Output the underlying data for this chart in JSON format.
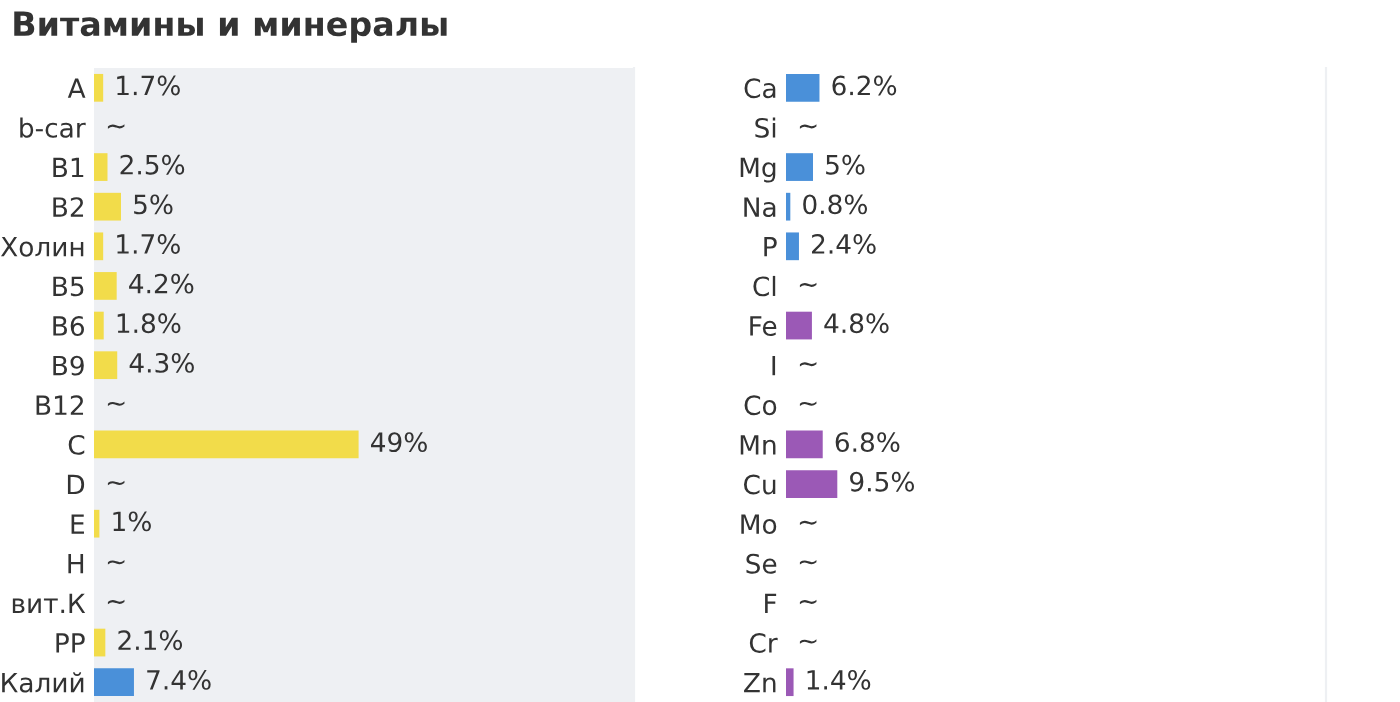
{
  "chart_data": [
    {
      "type": "bar",
      "orientation": "horizontal",
      "title": "Витамины и минералы",
      "categories": [
        "A",
        "b-car",
        "B1",
        "B2",
        "Холин",
        "B5",
        "B6",
        "B9",
        "B12",
        "C",
        "D",
        "E",
        "H",
        "вит.К",
        "PP",
        "Калий"
      ],
      "values": [
        1.7,
        null,
        2.5,
        5,
        1.7,
        4.2,
        1.8,
        4.3,
        null,
        49,
        null,
        1,
        null,
        null,
        2.1,
        7.4
      ],
      "value_labels": [
        "1.7%",
        "~",
        "2.5%",
        "5%",
        "1.7%",
        "4.2%",
        "1.8%",
        "4.3%",
        "~",
        "49%",
        "~",
        "1%",
        "~",
        "~",
        "2.1%",
        "7.4%"
      ],
      "colors": [
        "#f2dc4a",
        "#f2dc4a",
        "#f2dc4a",
        "#f2dc4a",
        "#f2dc4a",
        "#f2dc4a",
        "#f2dc4a",
        "#f2dc4a",
        "#f2dc4a",
        "#f2dc4a",
        "#f2dc4a",
        "#f2dc4a",
        "#f2dc4a",
        "#f2dc4a",
        "#f2dc4a",
        "#4a90d9"
      ],
      "xlim": [
        0,
        100
      ],
      "tick_labels": "y",
      "bands": [
        {
          "axis": "x",
          "from": 0,
          "to": 100,
          "color": "#eef0f3"
        }
      ]
    },
    {
      "type": "bar",
      "orientation": "horizontal",
      "categories": [
        "Ca",
        "Si",
        "Mg",
        "Na",
        "P",
        "Cl",
        "Fe",
        "I",
        "Co",
        "Mn",
        "Cu",
        "Mo",
        "Se",
        "F",
        "Cr",
        "Zn"
      ],
      "values": [
        6.2,
        null,
        5,
        0.8,
        2.4,
        null,
        4.8,
        null,
        null,
        6.8,
        9.5,
        null,
        null,
        null,
        null,
        1.4
      ],
      "value_labels": [
        "6.2%",
        "~",
        "5%",
        "0.8%",
        "2.4%",
        "~",
        "4.8%",
        "~",
        "~",
        "6.8%",
        "9.5%",
        "~",
        "~",
        "~",
        "~",
        "1.4%"
      ],
      "colors": [
        "#4a90d9",
        "#4a90d9",
        "#4a90d9",
        "#4a90d9",
        "#4a90d9",
        "#4a90d9",
        "#9b59b6",
        "#9b59b6",
        "#9b59b6",
        "#9b59b6",
        "#9b59b6",
        "#9b59b6",
        "#9b59b6",
        "#9b59b6",
        "#9b59b6",
        "#9b59b6"
      ],
      "xlim": [
        0,
        100
      ],
      "tick_labels": "y"
    }
  ]
}
